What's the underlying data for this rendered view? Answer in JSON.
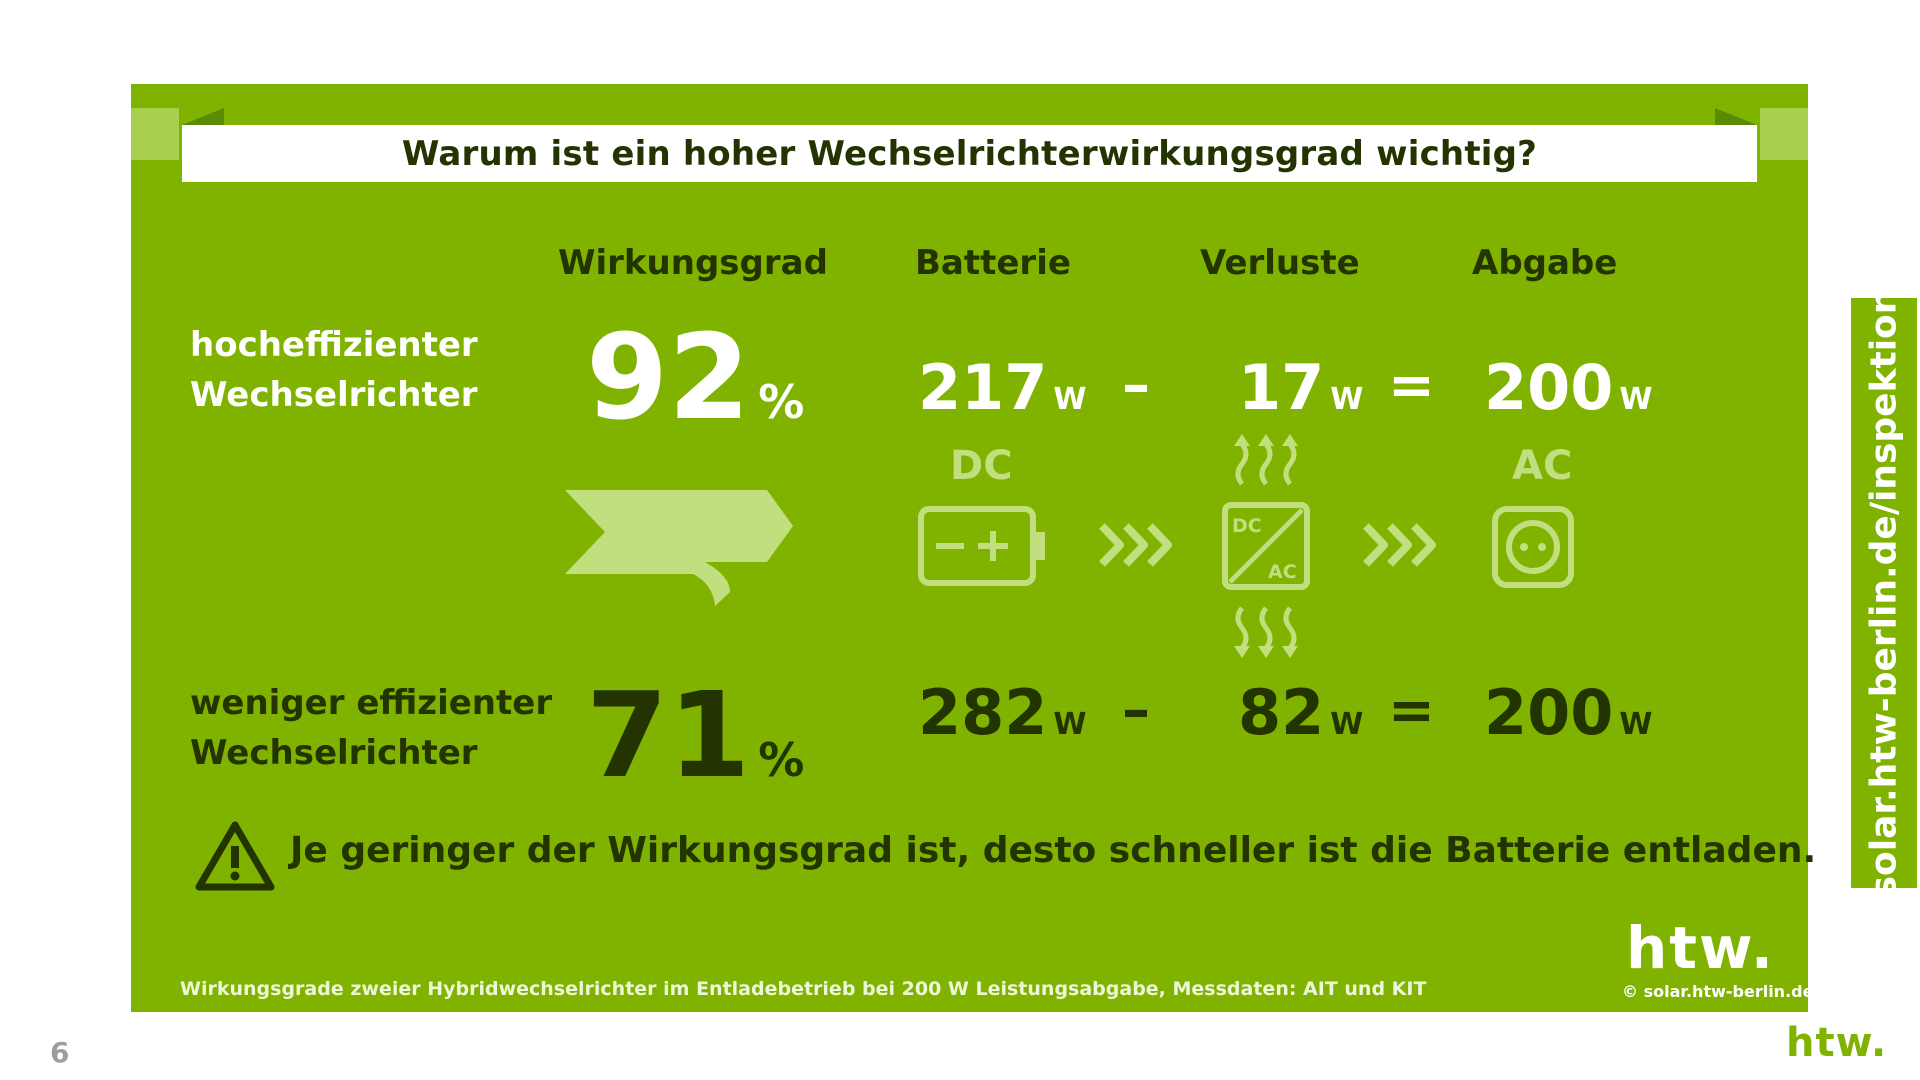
{
  "title": "Warum ist ein hoher Wechselrichterwirkungsgrad wichtig?",
  "columns": {
    "efficiency": "Wirkungsgrad",
    "battery": "Batterie",
    "losses": "Verluste",
    "output": "Abgabe"
  },
  "rows": [
    {
      "label_line1": "hocheffizienter",
      "label_line2": "Wechselrichter",
      "efficiency": "92",
      "battery": "217",
      "losses": "17",
      "output": "200"
    },
    {
      "label_line1": "weniger effizienter",
      "label_line2": "Wechselrichter",
      "efficiency": "71",
      "battery": "282",
      "losses": "82",
      "output": "200"
    }
  ],
  "units": {
    "percent": "%",
    "watt": "W"
  },
  "operators": {
    "minus": "–",
    "equals": "="
  },
  "icons": {
    "dc_label": "DC",
    "ac_label": "AC",
    "converter_dc": "DC",
    "converter_ac": "AC",
    "items": [
      "flag-arrow-icon",
      "battery-icon",
      "chevrons-right-icon",
      "heat-up-icon",
      "dc-ac-converter-icon",
      "heat-down-icon",
      "power-socket-icon",
      "warning-icon"
    ]
  },
  "note": "Je geringer der Wirkungsgrad ist, desto schneller ist die Batterie entladen.",
  "footnote": "Wirkungsgrade zweier Hybridwechselrichter im Entladebetrieb bei 200 W Leistungsabgabe, Messdaten: AIT und KIT",
  "copyright": "© solar.htw-berlin.de",
  "side_url": "solar.htw-berlin.de/inspektion",
  "page_number": "6",
  "logo_text": "htw.",
  "colors": {
    "panel_green": "#7fb300",
    "dark_text": "#233400",
    "pale_icon": "#c2df80",
    "white": "#ffffff"
  }
}
